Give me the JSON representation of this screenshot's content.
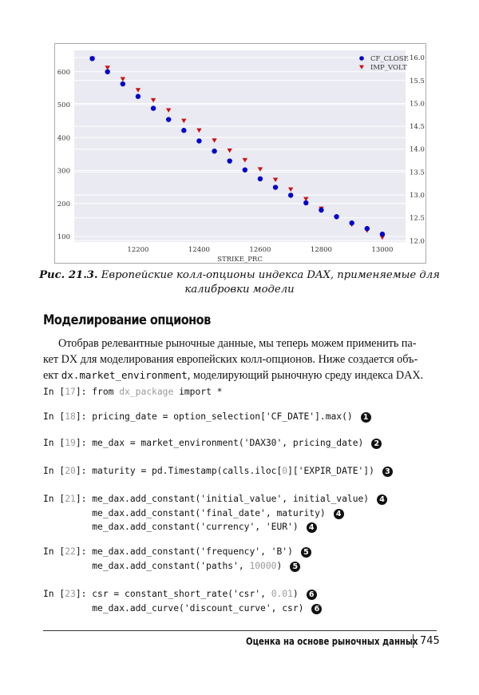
{
  "chart_data": {
    "type": "scatter",
    "xlabel": "STRIKE_PRC",
    "x": [
      12050,
      12100,
      12150,
      12200,
      12250,
      12300,
      12350,
      12400,
      12450,
      12500,
      12550,
      12600,
      12650,
      12700,
      12750,
      12800,
      12850,
      12900,
      12950,
      13000
    ],
    "xticks": [
      "12200",
      "12400",
      "12600",
      "12800",
      "13000"
    ],
    "xlim": [
      11991,
      13076
    ],
    "ylim_left": [
      83,
      665
    ],
    "yticks_left": [
      "100",
      "200",
      "300",
      "400",
      "500",
      "600"
    ],
    "ylim_right": [
      11.97,
      16.16
    ],
    "yticks_right": [
      "12.0",
      "12.5",
      "13.0",
      "13.5",
      "14.0",
      "14.5",
      "15.0",
      "15.5",
      "16.0"
    ],
    "grid": true,
    "legend_placement": "top-right",
    "series": [
      {
        "name": "CF_CLOSE",
        "axis": "left",
        "marker": "circle",
        "color": "#0000cc",
        "values": [
          640,
          600,
          563,
          525,
          489,
          455,
          422,
          390,
          359,
          329,
          302,
          275,
          249,
          225,
          202,
          180,
          160,
          141,
          124,
          107
        ]
      },
      {
        "name": "IMP_VOLT",
        "axis": "right",
        "marker": "triangle-down",
        "color": "#cc1111",
        "values": [
          15.98,
          15.78,
          15.53,
          15.29,
          15.07,
          14.85,
          14.62,
          14.41,
          14.19,
          13.97,
          13.76,
          13.56,
          13.33,
          13.12,
          12.91,
          12.7,
          12.51,
          12.35,
          12.22,
          12.07
        ]
      }
    ]
  },
  "caption": {
    "label": "Рис. 21.3.",
    "line1": "Европейские колл-опционы индекса DAX, применяемые для",
    "line2": "калибровки модели"
  },
  "section": {
    "heading": "Моделирование опционов",
    "para_line1": "Отобрав релевантные рыночные данные, мы теперь можем применить па-",
    "para_line2": "кет DX для моделирования европейских колл-опционов. Ниже создается объ-",
    "para_line3_pre": "ект ",
    "para_line3_code": "dx.market_environment",
    "para_line3_post": ", моделирующий рыночную среду индекса DAX."
  },
  "code_lines": [
    {
      "parts": [
        [
          "In [",
          ""
        ],
        [
          "17",
          "gray"
        ],
        [
          "]: from ",
          ""
        ],
        [
          "dx_package",
          "gray"
        ],
        [
          " import *",
          ""
        ]
      ],
      "callout": ""
    },
    {
      "parts": [
        [
          "In [",
          ""
        ],
        [
          "18",
          "gray"
        ],
        [
          "]: pricing_date = option_selection['CF_DATE'].max()",
          ""
        ]
      ],
      "callout": "1"
    },
    {
      "parts": [
        [
          "In [",
          ""
        ],
        [
          "19",
          "gray"
        ],
        [
          "]: me_dax = market_environment('DAX30', pricing_date)",
          ""
        ]
      ],
      "callout": "2"
    },
    {
      "parts": [
        [
          "In [",
          ""
        ],
        [
          "20",
          "gray"
        ],
        [
          "]: maturity = pd.Timestamp(calls.iloc[",
          ""
        ],
        [
          "0",
          "gray"
        ],
        [
          "]['EXPIR_DATE'])",
          ""
        ]
      ],
      "callout": "3"
    },
    {
      "parts": [
        [
          "In [",
          ""
        ],
        [
          "21",
          "gray"
        ],
        [
          "]: me_dax.add_constant('initial_value', initial_value)",
          ""
        ]
      ],
      "callout": "4"
    },
    {
      "parts": [
        [
          "         me_dax.add_constant('final_date', maturity)",
          ""
        ]
      ],
      "callout": "4"
    },
    {
      "parts": [
        [
          "         me_dax.add_constant('currency', 'EUR')",
          ""
        ]
      ],
      "callout": "4"
    },
    {
      "parts": [
        [
          "In [",
          ""
        ],
        [
          "22",
          "gray"
        ],
        [
          "]: me_dax.add_constant('frequency', 'B')",
          ""
        ]
      ],
      "callout": "5"
    },
    {
      "parts": [
        [
          "         me_dax.add_constant('paths', ",
          ""
        ],
        [
          "10000",
          "gray"
        ],
        [
          ")",
          ""
        ]
      ],
      "callout": "5"
    },
    {
      "parts": [
        [
          "In [",
          ""
        ],
        [
          "23",
          "gray"
        ],
        [
          "]: csr = constant_short_rate('csr', ",
          ""
        ],
        [
          "0.01",
          "gray"
        ],
        [
          ")",
          ""
        ]
      ],
      "callout": "6"
    },
    {
      "parts": [
        [
          "         me_dax.add_curve('discount_curve', csr)",
          ""
        ]
      ],
      "callout": "6"
    }
  ],
  "footer": {
    "title": "Оценка на основе рыночных данных",
    "page": "745"
  }
}
